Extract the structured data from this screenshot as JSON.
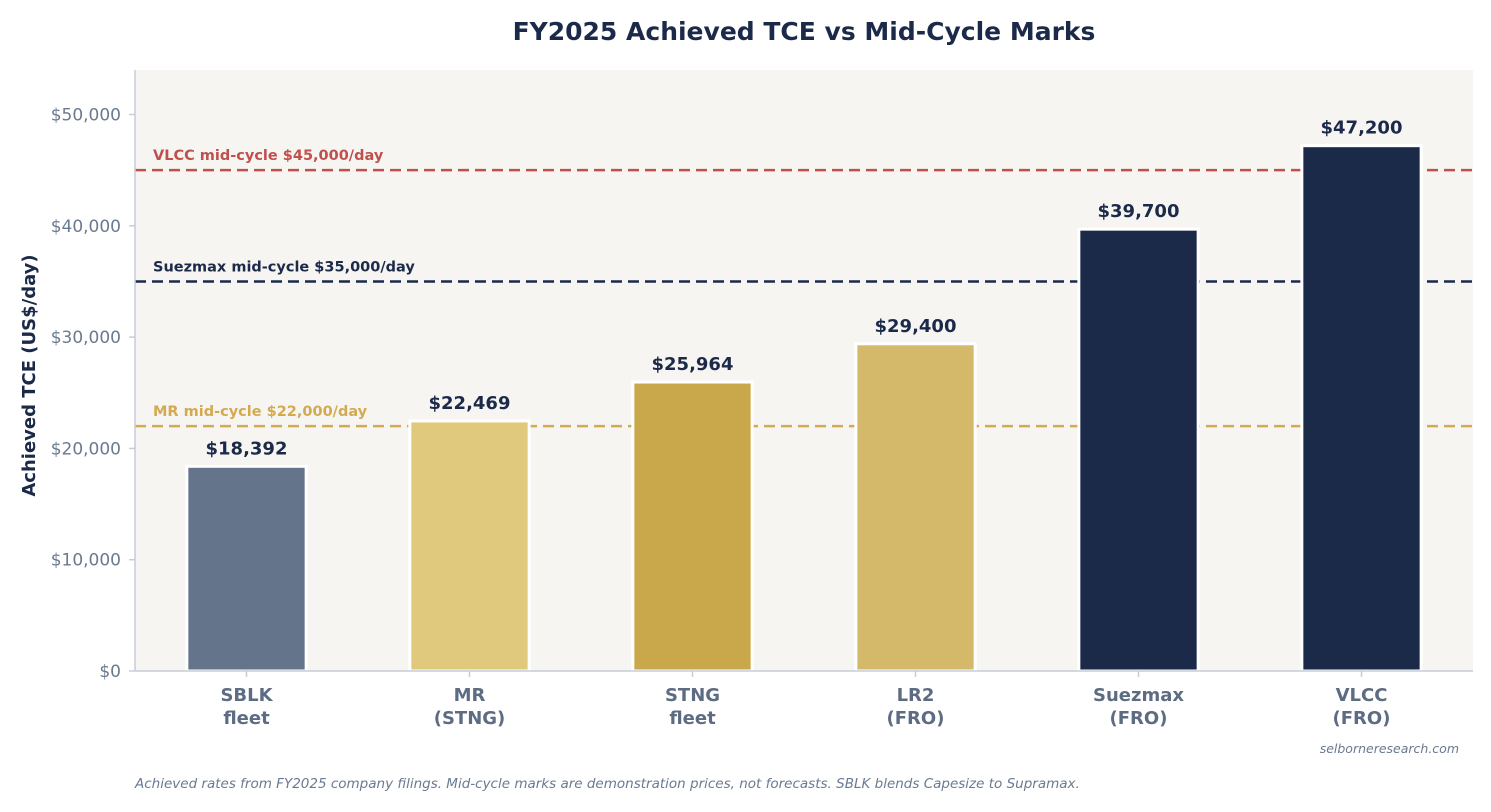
{
  "chart_data": {
    "type": "bar",
    "title": "FY2025 Achieved TCE vs Mid-Cycle Marks",
    "ylabel": "Achieved TCE (US$/day)",
    "xlabel": "",
    "ylim": [
      0,
      54000
    ],
    "yticks": [
      0,
      10000,
      20000,
      30000,
      40000,
      50000
    ],
    "ytick_labels": [
      "$0",
      "$10,000",
      "$20,000",
      "$30,000",
      "$40,000",
      "$50,000"
    ],
    "grid": false,
    "categories": [
      [
        "SBLK",
        "fleet"
      ],
      [
        "MR",
        "(STNG)"
      ],
      [
        "STNG",
        "fleet"
      ],
      [
        "LR2",
        "(FRO)"
      ],
      [
        "Suezmax",
        "(FRO)"
      ],
      [
        "VLCC",
        "(FRO)"
      ]
    ],
    "values": [
      18392,
      22469,
      25964,
      29400,
      39700,
      47200
    ],
    "value_labels": [
      "$18,392",
      "$22,469",
      "$25,964",
      "$29,400",
      "$39,700",
      "$47,200"
    ],
    "bar_colors": [
      "#64748b",
      "#e0c97d",
      "#c9a84c",
      "#d4b96b",
      "#1c2a4a",
      "#1c2a4a"
    ],
    "reference_lines": [
      {
        "value": 45000,
        "label": "VLCC mid-cycle $45,000/day",
        "color": "#c0504d"
      },
      {
        "value": 35000,
        "label": "Suezmax mid-cycle $35,000/day",
        "color": "#1c2a4a"
      },
      {
        "value": 22000,
        "label": "MR mid-cycle $22,000/day",
        "color": "#d4aa50"
      }
    ],
    "plot_background": "#f7f5f2",
    "watermark": "selborneresearch.com",
    "footnote": "Achieved rates from FY2025 company filings. Mid-cycle marks are demonstration prices, not forecasts. SBLK blends Capesize to Supramax."
  }
}
